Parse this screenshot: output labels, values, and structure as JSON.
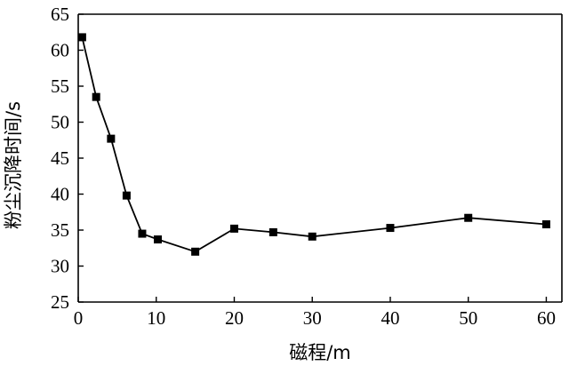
{
  "chart_data": {
    "type": "line",
    "title": "",
    "xlabel": "磁程/m",
    "ylabel": "粉尘沉降时间/s",
    "xlim": [
      0,
      62
    ],
    "ylim": [
      25,
      65
    ],
    "xticks": [
      0,
      10,
      20,
      30,
      40,
      50,
      60
    ],
    "yticks": [
      25,
      30,
      35,
      40,
      45,
      50,
      55,
      60,
      65
    ],
    "grid": false,
    "legend": "none",
    "marker": "square",
    "line_color": "#000000",
    "series": [
      {
        "x": [
          0.5,
          2.3,
          4.2,
          6.2,
          8.2,
          10.2,
          15.0,
          20.0,
          25.0,
          30.0,
          40.0,
          50.0,
          60.0
        ],
        "y": [
          61.8,
          53.5,
          47.7,
          39.8,
          34.5,
          33.7,
          32.0,
          35.2,
          34.7,
          34.1,
          35.3,
          36.7,
          35.8
        ]
      }
    ]
  }
}
